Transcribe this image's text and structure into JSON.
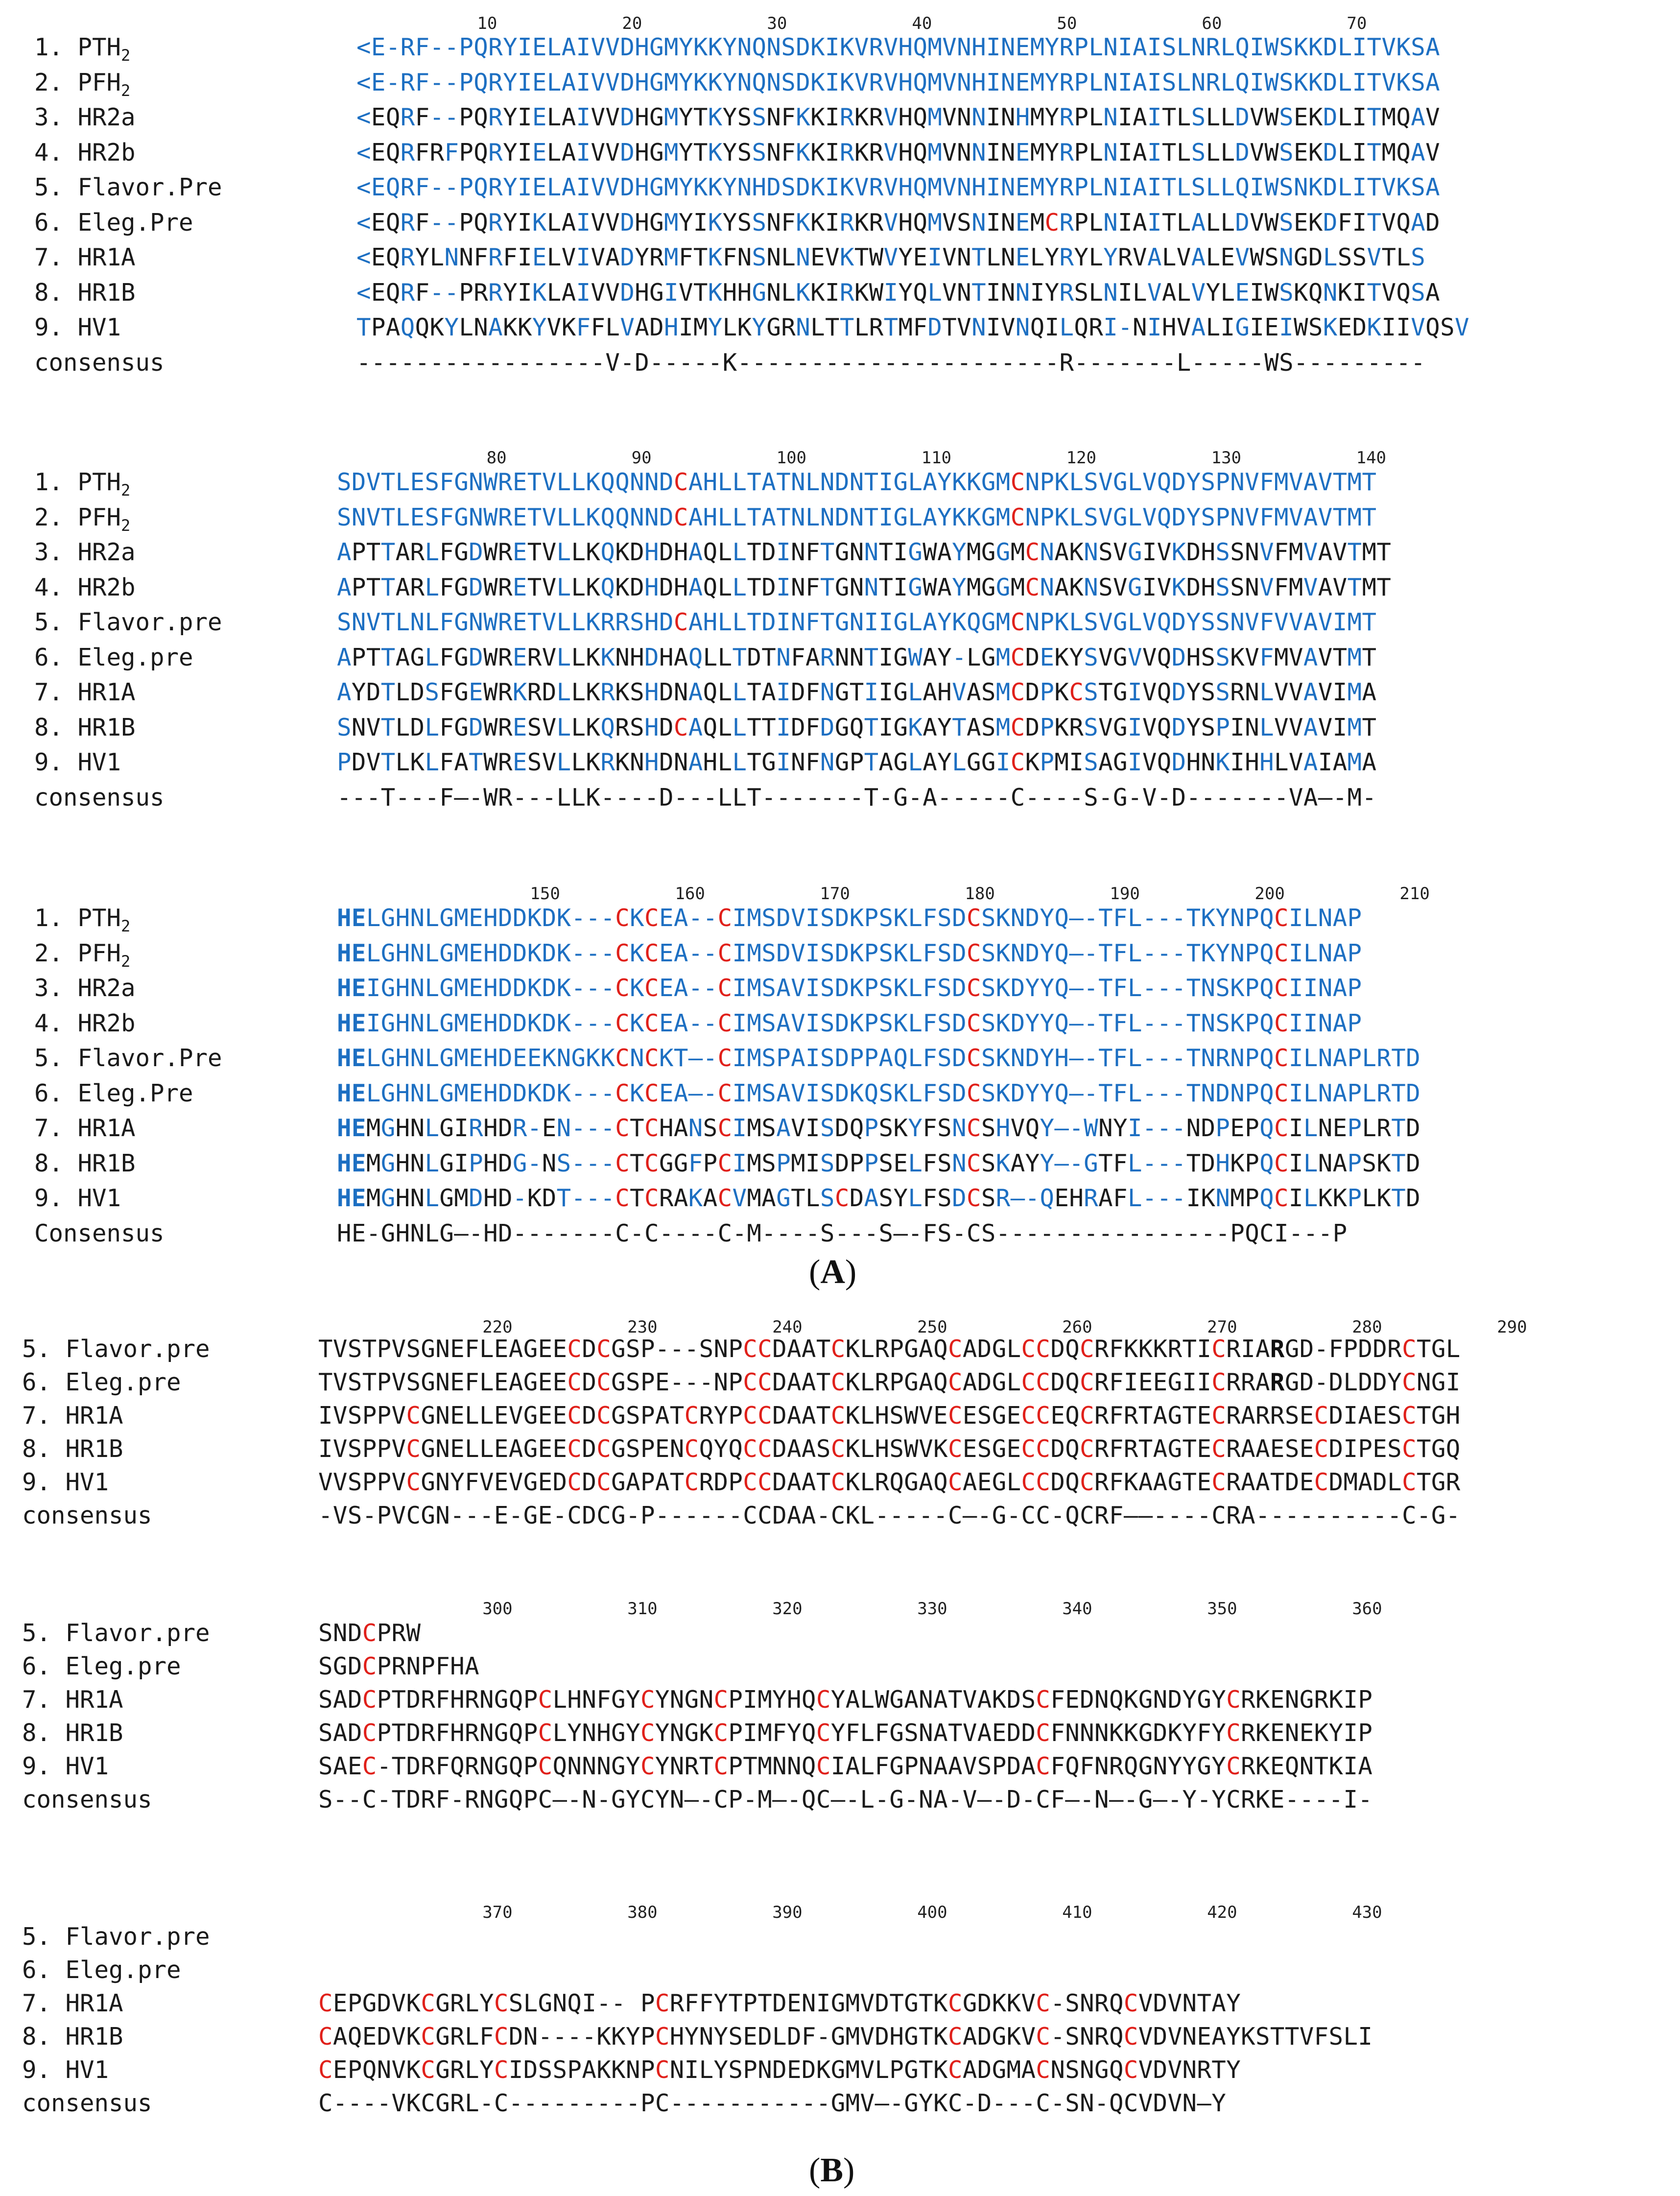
{
  "figure": {
    "panel_a_label": "(A)",
    "panel_b_label": "(B)",
    "panel_a_letter": "A",
    "panel_b_letter": "B"
  },
  "block1": {
    "ruler": [
      "10",
      "20",
      "30",
      "40",
      "50",
      "60",
      "70"
    ],
    "rows": [
      {
        "label": "1. PTH2",
        "seq": "<E-RF--PQRYIELAIVVDHGMYKKYNQNSDKIKVRVHQMVNHINEMYRPLNIAISLNRLQIWSKKDLITVKSA"
      },
      {
        "label": "2. PFH2",
        "seq": "<E-RF--PQRYIELAIVVDHGMYKKYNQNSDKIKVRVHQMVNHINEMYRPLNIAISLNRLQIWSKKDLITVKSA"
      },
      {
        "label": "3. HR2a",
        "seq": "<EQRF--PQRYIELAIVVDHGMYTKYSSNFKKIRKRVHQMVNNINHMYRPLNIAITLSLLDVWSEKDLITMQAV"
      },
      {
        "label": "4. HR2b",
        "seq": "<EQRFRFPQRYIELAIVVDHGMYTKYSSNFKKIRKRVHQMVNNINEMYRPLNIAITLSLLDVWSEKDLITMQAV"
      },
      {
        "label": "5. Flavor.Pre",
        "seq": "<EQRF--PQRYIELAIVVDHGMYKKYNHDSDKIKVRVHQMVNHINEMYRPLNIAITLSLLQIWSNKDLITVKSA"
      },
      {
        "label": "6. Eleg.Pre",
        "seq": "<EQRF--PQRYIKLAIVVDHGMYIKYSSNFKKIRKRVHQMVSNINEMCRPLNIAITLALLDVWSEKDFITVQAD"
      },
      {
        "label": "7. HR1A",
        "seq": "<EQRYLNNFRFIELVIVADYRMFTKFNSNLNEVKTWVYEIVNTLNELYRYLYRVALVALEVWSNGDLSSVTLS"
      },
      {
        "label": "8. HR1B",
        "seq": "<EQRF--PRRYIKLAIVVDHGIVTKHHGNLKKIRKWIYQLVNTINNIYRSLNILVALVYLEIWSKQNKITVQSA"
      },
      {
        "label": "9. HV1",
        "seq": "TPAQQKYLNAKKYVKFFLVADHIMYLKYGRNLTTLRTMFDTVNIVNQILQRI-NIHVALIGIEIWSKEDKIIVQSV"
      },
      {
        "label": "consensus",
        "seq": "-----------------V-D-----K----------------------R-------L-----WS---------"
      }
    ]
  },
  "block2": {
    "ruler": [
      "80",
      "90",
      "100",
      "110",
      "120",
      "130",
      "140"
    ],
    "rows": [
      {
        "label": "1. PTH2",
        "seq": "SDVTLESFGNWRETVLLKQQNNDCAHLLTATNLNDNTIGLAYKKGMCNPKLSVGLVQDYSPNVFMVAVTMT"
      },
      {
        "label": "2. PFH2",
        "seq": "SNVTLESFGNWRETVLLKQQNNDCAHLLTATNLNDNTIGLAYKKGMCNPKLSVGLVQDYSPNVFMVAVTMT"
      },
      {
        "label": "3. HR2a",
        "seq": "APTTARLFGDWRETVLLKQKDHDHAQLLTDINFTGNNTIGWAYMGGMCNAKNSVGIVKDHSSNVFMVAVTMT"
      },
      {
        "label": "4. HR2b",
        "seq": "APTTARLFGDWRETVLLKQKDHDHAQLLTDINFTGNNTIGWAYMGGMCNAKNSVGIVKDHSSNVFMVAVTMT"
      },
      {
        "label": "5. Flavor.pre",
        "seq": "SNVTLNLFGNWRETVLLKRRSHDCAHLLTDINFTGNIIGLAYKQGMCNPKLSVGLVQDYSSNVFVVAVIMT"
      },
      {
        "label": "6. Eleg.pre",
        "seq": "APTTAGLFGDWRERVLLKKNHDHAQLLTDTNFARNNTIGWAY-LGMCDEKYSVGVVQDHSSKVFMVAVTMT"
      },
      {
        "label": "7. HR1A",
        "seq": "AYDTLDSFGEWRKRDLLKRKSHDNAQLLTAIDFNGTIIGLAHVASMCDPKCSTGIVQDYSSRNLVVAVIMA"
      },
      {
        "label": "8. HR1B",
        "seq": "SNVTLDLFGDWRESVLLKQRSHDCAQLLTTIDFDGQTIGKAYTASMCDPKRSVGIVQDYSPINLVVAVIMT"
      },
      {
        "label": "9. HV1",
        "seq": "PDVTLKLFATWRESVLLKRKNHDNAHLLTGINFNGPTAGLAYLGGICKPMISAGIVQDHNKIHHLVAIAMA"
      },
      {
        "label": "consensus",
        "seq": "---T---F—-WR---LLK----D---LLT-------T-G-A-----C----S-G-V-D-------VA—-M-"
      }
    ]
  },
  "block3": {
    "ruler": [
      "150",
      "160",
      "170",
      "180",
      "190",
      "200",
      "210"
    ],
    "rows": [
      {
        "label": "1. PTH2",
        "seq": "HELGHNLGMEHDDKDK---CKCEA--CIMSDVISDKPSKLFSDCSKNDYQ—-TFL---TKYNPQCILNAP"
      },
      {
        "label": "2. PFH2",
        "seq": "HELGHNLGMEHDDKDK---CKCEA--CIMSDVISDKPSKLFSDCSKNDYQ—-TFL---TKYNPQCILNAP"
      },
      {
        "label": "3. HR2a",
        "seq": "HEIGHNLGMEHDDKDK---CKCEA--CIMSAVISDKPSKLFSDCSKDYYQ—-TFL---TNSKPQCIINAP"
      },
      {
        "label": "4. HR2b",
        "seq": "HEIGHNLGMEHDDKDK---CKCEA--CIMSAVISDKPSKLFSDCSKDYYQ—-TFL---TNSKPQCIINAP"
      },
      {
        "label": "5. Flavor.Pre",
        "seq": "HELGHNLGMEHDEEKNGKKCNCKT—-CIMSPAISDPPAQLFSDCSKNDYH—-TFL---TNRNPQCILNAPLRTD"
      },
      {
        "label": "6. Eleg.Pre",
        "seq": "HELGHNLGMEHDDKDK---CKCEA—-CIMSAVISDKQSKLFSDCSKDYYQ—-TFL---TNDNPQCILNAPLRTD"
      },
      {
        "label": "7. HR1A",
        "seq": "HEMGHNLGIRHDR-EN---CTCHANSCIMSAVISDQPSKYFSNCSHVQY—-WNYI---NDPEPQCILNEPLRTD"
      },
      {
        "label": "8. HR1B",
        "seq": "HEMGHNLGIPHDG-NS---CTCGGFPCIMSPMISDPPSELFSNCSKAYY—-GTFL---TDHKPQCILNAPSKTD"
      },
      {
        "label": "9. HV1",
        "seq": "HEMGHNLGMDHD-KDT---CTCRAKACVMAGTLSCDASYLFSDCSR—-QEHRAFL---IKNMPQCILKKPLKTD"
      },
      {
        "label": "Consensus",
        "seq": "HE-GHNLG—-HD-------C-C----C-M----S---S—-FS-CS----------------PQCI---P"
      }
    ]
  },
  "block4": {
    "ruler": [
      "220",
      "230",
      "240",
      "250",
      "260",
      "270",
      "280",
      "290"
    ],
    "rows": [
      {
        "label": "5. Flavor.pre",
        "seq": "TVSTPVSGNEFLEAGEECDCGSP---SNPCCDAATCKLRPGAQCADGLCCDQCRFKKKRTICRIARGD-FPDDRCTGL"
      },
      {
        "label": "6. Eleg.pre",
        "seq": "TVSTPVSGNEFLEAGEECDCGSPE---NPCCDAATCKLRPGAQCADGLCCDQCRFIEEGIICRRARGD-DLDDYCNGI"
      },
      {
        "label": "7. HR1A",
        "seq": "IVSPPVCGNELLEVGEECDCGSPATCRYPCCDAATCKLHSWVECESGECCEQCRFRTAGTECRARRSECDIAESCTGH"
      },
      {
        "label": "8. HR1B",
        "seq": "IVSPPVCGNELLEAGEECDCGSPENCQYQCCDAASCKLHSWVKCESGECCDQCRFRTAGTECRAAESECDIPESCTGQ"
      },
      {
        "label": "9. HV1",
        "seq": "VVSPPVCGNYFVEVGEDCDCGAPATCRDPCCDAATCKLRQGAQCAEGLCCDQCRFKAAGTECRAATDECDMADLCTGR"
      },
      {
        "label": "consensus",
        "seq": "-VS-PVCGN---E-GE-CDCG-P------CCDAA-CKL-----C—-G-CC-QCRF——----CRA----------C-G-"
      }
    ]
  },
  "block5": {
    "ruler": [
      "300",
      "310",
      "320",
      "330",
      "340",
      "350",
      "360"
    ],
    "rows": [
      {
        "label": "5. Flavor.pre",
        "seq": "SNDCPRW"
      },
      {
        "label": "6. Eleg.pre",
        "seq": "SGDCPRNPFHA"
      },
      {
        "label": "7. HR1A",
        "seq": "SADCPTDRFHRNGQPCLHNFGYCYNGNCPIMYHQCYALWGANATVAKDSCFEDNQKGNDYGYCRKENGRKIP"
      },
      {
        "label": "8. HR1B",
        "seq": "SADCPTDRFHRNGQPCLYNHGYCYNGKCPIMFYQCYFLFGSNATVAEDDCFNNNKKGDKYFYCRKENEKYIP"
      },
      {
        "label": "9. HV1",
        "seq": "SAEC-TDRFQRNGQPCQNNNGYCYNRTCPTMNNQCIALFGPNAAVSPDACFQFNRQGNYYGYCRKEQNTKIA"
      },
      {
        "label": "consensus",
        "seq": "S--C-TDRF-RNGQPC—-N-GYCYN—-CP-M—-QC—-L-G-NA-V—-D-CF—-N—-G—-Y-YCRKE----I-"
      }
    ]
  },
  "block6": {
    "ruler": [
      "370",
      "380",
      "390",
      "400",
      "410",
      "420",
      "430"
    ],
    "rows": [
      {
        "label": "5. Flavor.pre",
        "seq": ""
      },
      {
        "label": "6. Eleg.pre",
        "seq": ""
      },
      {
        "label": "7. HR1A",
        "seq": "CEPGDVKCGRLYCSLGNQI-- PCRFFYTPTDENIGMVDTGTKCGDKKVC-SNRQCVDVNTAY"
      },
      {
        "label": "8. HR1B",
        "seq": "CAQEDVKCGRLFCDN----KKYPCHYNYSEDLDF-GMVDHGTKCADGKVC-SNRQCVDVNEAYKSTTVFSLI"
      },
      {
        "label": "9. HV1",
        "seq": "CEPQNVKCGRLYCIDSSPAKKNPCNILYSPNDEDKGMVLPGTKCADGMACNSNGQCVDVNRTY"
      },
      {
        "label": "consensus",
        "seq": "C----VKCGRL-C---------PC-----------GMV—-GYKC-D---C-SN-QCVDVN—Y"
      }
    ]
  },
  "colors": {
    "blue": "#1d6fc2",
    "red": "#e0201a",
    "black": "#1a1a1a"
  }
}
